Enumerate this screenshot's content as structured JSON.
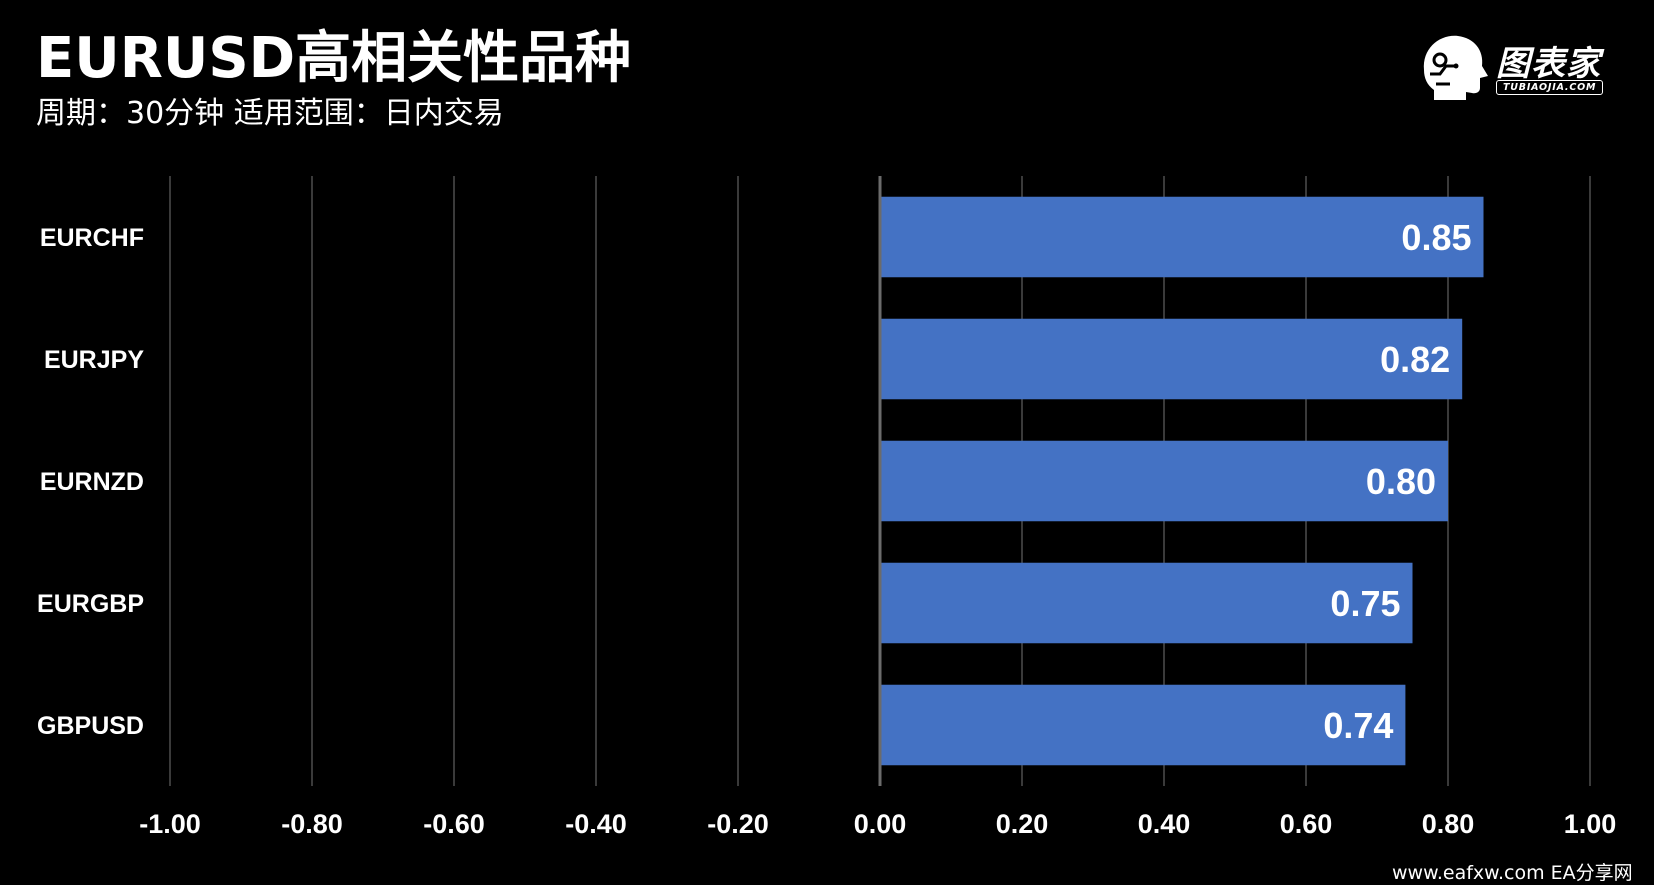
{
  "header": {
    "title": "EURUSD高相关性品种",
    "subtitle": "周期：30分钟  适用范围：日内交易"
  },
  "logo": {
    "name": "图表家",
    "url_text": "TUBIAOJIA.COM"
  },
  "watermark": "www.eafxw.com    EA分享网",
  "colors": {
    "background": "#000000",
    "bar": "#4472C4",
    "grid": "#3a3a3a",
    "zero_axis": "#6b6b6b",
    "text": "#ffffff"
  },
  "chart_data": {
    "type": "bar",
    "orientation": "horizontal",
    "title": "EURUSD高相关性品种",
    "subtitle": "周期：30分钟  适用范围：日内交易",
    "categories": [
      "EURCHF",
      "EURJPY",
      "EURNZD",
      "EURGBP",
      "GBPUSD"
    ],
    "values": [
      0.85,
      0.82,
      0.8,
      0.75,
      0.74
    ],
    "data_labels": [
      "0.85",
      "0.82",
      "0.80",
      "0.75",
      "0.74"
    ],
    "xlim": [
      -1.0,
      1.0
    ],
    "x_ticks": [
      -1.0,
      -0.8,
      -0.6,
      -0.4,
      -0.2,
      0.0,
      0.2,
      0.4,
      0.6,
      0.8,
      1.0
    ],
    "x_tick_labels": [
      "-1.00",
      "-0.80",
      "-0.60",
      "-0.40",
      "-0.20",
      "0.00",
      "0.20",
      "0.40",
      "0.60",
      "0.80",
      "1.00"
    ],
    "xlabel": "",
    "ylabel": "",
    "grid": "vertical",
    "legend": "none"
  }
}
